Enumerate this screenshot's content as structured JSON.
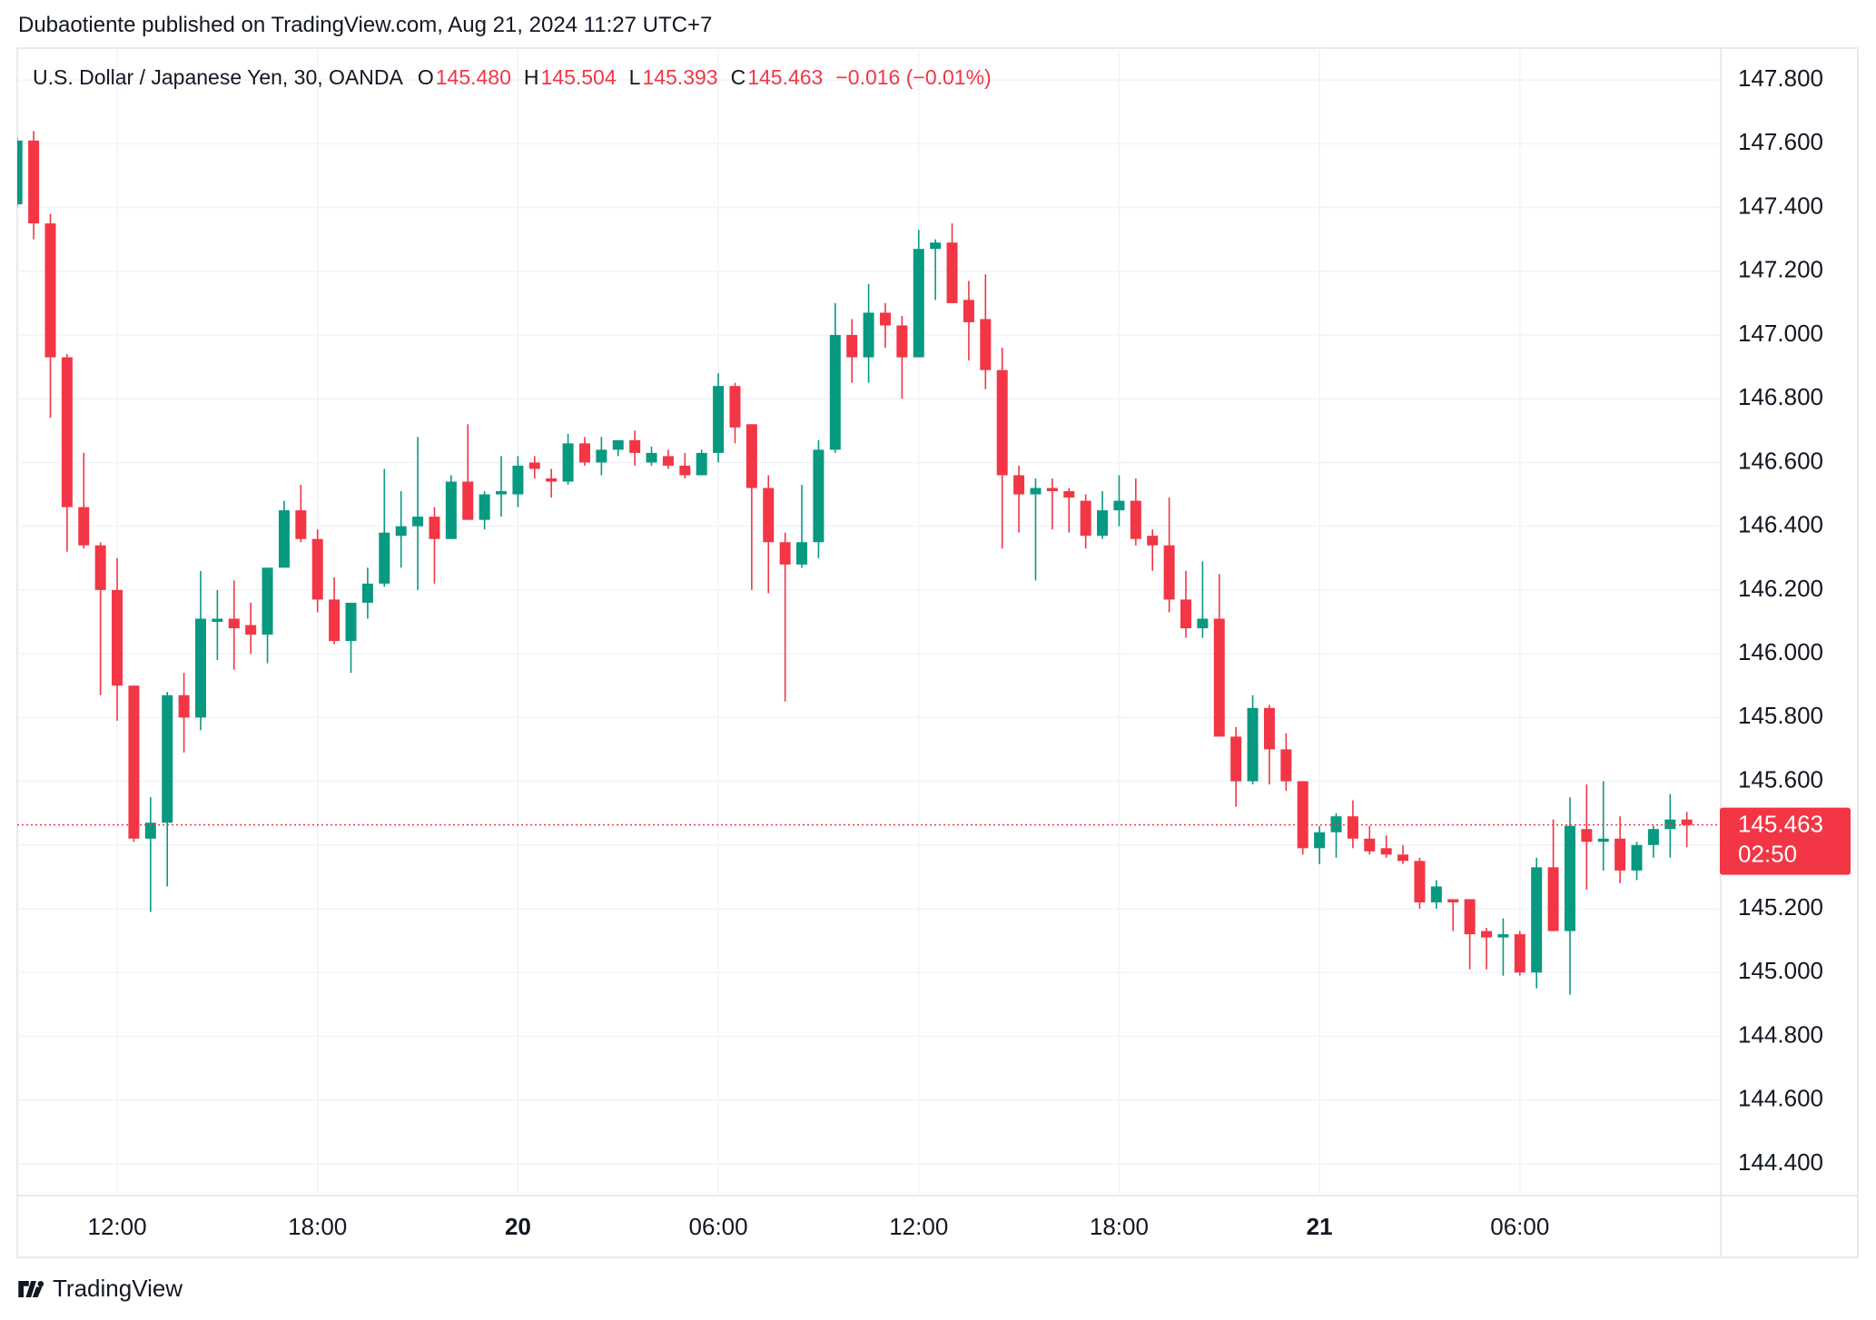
{
  "published": "Dubaotiente published on TradingView.com, Aug 21, 2024 11:27 UTC+7",
  "footer": "TradingView",
  "chart_data": {
    "type": "candlestick",
    "legend": {
      "symbol": "U.S. Dollar / Japanese Yen, 30, OANDA",
      "ohlc": [
        {
          "key": "O",
          "value": "145.480"
        },
        {
          "key": "H",
          "value": "145.504"
        },
        {
          "key": "L",
          "value": "145.393"
        },
        {
          "key": "C",
          "value": "145.463"
        }
      ],
      "change": "−0.016 (−0.01%)"
    },
    "up_color": "#089981",
    "down_color": "#f23645",
    "categories": [
      null,
      null,
      null,
      null,
      null,
      null,
      "12:00",
      null,
      null,
      null,
      null,
      null,
      null,
      null,
      null,
      null,
      null,
      null,
      "18:00",
      null,
      null,
      null,
      null,
      null,
      null,
      null,
      null,
      null,
      null,
      null,
      "20",
      null,
      null,
      null,
      null,
      null,
      null,
      null,
      null,
      null,
      null,
      null,
      "06:00",
      null,
      null,
      null,
      null,
      null,
      null,
      null,
      null,
      null,
      null,
      null,
      "12:00",
      null,
      null,
      null,
      null,
      null,
      null,
      null,
      null,
      null,
      null,
      null,
      "18:00",
      null,
      null,
      null,
      null,
      null,
      null,
      null,
      null,
      null,
      null,
      null,
      "21",
      null,
      null,
      null,
      null,
      null,
      null,
      null,
      null,
      null,
      null,
      null,
      "06:00",
      null,
      null,
      null,
      null,
      null,
      null,
      null,
      null,
      null,
      null
    ],
    "series": [
      {
        "name": "Open",
        "values": [
          147.41,
          147.61,
          147.35,
          146.93,
          146.46,
          146.34,
          146.2,
          145.9,
          145.42,
          145.47,
          145.87,
          145.8,
          146.1,
          146.11,
          146.09,
          146.06,
          146.27,
          146.45,
          146.36,
          146.17,
          146.04,
          146.16,
          146.22,
          146.37,
          146.4,
          146.43,
          146.36,
          146.54,
          146.42,
          146.5,
          146.5,
          146.6,
          146.55,
          146.54,
          146.66,
          146.6,
          146.64,
          146.67,
          146.6,
          146.62,
          146.59,
          146.56,
          146.63,
          146.84,
          146.72,
          146.52,
          146.35,
          146.28,
          146.35,
          146.64,
          147.0,
          146.93,
          147.07,
          147.03,
          146.93,
          147.27,
          147.29,
          147.11,
          147.05,
          146.89,
          146.56,
          146.5,
          146.52,
          146.51,
          146.48,
          146.37,
          146.45,
          146.48,
          146.37,
          146.34,
          146.17,
          146.08,
          146.11,
          145.74,
          145.6,
          145.83,
          145.7,
          145.6,
          145.39,
          145.44,
          145.49,
          145.42,
          145.39,
          145.37,
          145.35,
          145.22,
          145.23,
          145.23,
          145.13,
          145.11,
          145.12,
          145.0,
          145.33,
          145.13,
          145.45,
          145.41,
          145.42,
          145.32,
          145.4,
          145.45,
          145.48
        ]
      },
      {
        "name": "High",
        "values": [
          147.62,
          147.64,
          147.38,
          146.94,
          146.63,
          146.35,
          146.3,
          145.9,
          145.55,
          145.88,
          145.94,
          146.26,
          146.2,
          146.23,
          146.16,
          146.27,
          146.48,
          146.53,
          146.39,
          146.24,
          146.16,
          146.27,
          146.58,
          146.51,
          146.68,
          146.46,
          146.56,
          146.72,
          146.51,
          146.62,
          146.62,
          146.62,
          146.58,
          146.69,
          146.68,
          146.68,
          146.67,
          146.7,
          146.65,
          146.64,
          146.63,
          146.64,
          146.88,
          146.85,
          146.72,
          146.56,
          146.38,
          146.53,
          146.67,
          147.1,
          147.05,
          147.16,
          147.1,
          147.06,
          147.33,
          147.3,
          147.35,
          147.17,
          147.19,
          146.96,
          146.59,
          146.55,
          146.55,
          146.52,
          146.5,
          146.51,
          146.56,
          146.55,
          146.39,
          146.49,
          146.26,
          146.29,
          146.25,
          145.77,
          145.87,
          145.84,
          145.75,
          145.6,
          145.46,
          145.5,
          145.54,
          145.46,
          145.43,
          145.4,
          145.36,
          145.29,
          145.23,
          145.23,
          145.14,
          145.17,
          145.13,
          145.36,
          145.48,
          145.55,
          145.59,
          145.6,
          145.49,
          145.41,
          145.46,
          145.56,
          145.504
        ]
      },
      {
        "name": "Low",
        "values": [
          147.4,
          147.3,
          146.74,
          146.32,
          146.33,
          145.87,
          145.79,
          145.41,
          145.19,
          145.27,
          145.69,
          145.76,
          145.98,
          145.95,
          146.0,
          145.97,
          146.27,
          146.35,
          146.13,
          146.03,
          145.94,
          146.11,
          146.21,
          146.27,
          146.2,
          146.22,
          146.36,
          146.42,
          146.39,
          146.43,
          146.46,
          146.55,
          146.49,
          146.53,
          146.59,
          146.56,
          146.62,
          146.59,
          146.59,
          146.58,
          146.55,
          146.56,
          146.6,
          146.66,
          146.2,
          146.19,
          145.85,
          146.27,
          146.3,
          146.63,
          146.85,
          146.85,
          146.96,
          146.8,
          146.93,
          147.11,
          147.1,
          146.92,
          146.83,
          146.33,
          146.38,
          146.23,
          146.39,
          146.38,
          146.33,
          146.36,
          146.4,
          146.34,
          146.26,
          146.13,
          146.05,
          146.05,
          145.74,
          145.52,
          145.59,
          145.59,
          145.57,
          145.37,
          145.34,
          145.36,
          145.39,
          145.37,
          145.36,
          145.34,
          145.2,
          145.2,
          145.13,
          145.01,
          145.01,
          144.99,
          144.99,
          144.95,
          145.13,
          144.93,
          145.26,
          145.32,
          145.28,
          145.29,
          145.36,
          145.36,
          145.393
        ]
      },
      {
        "name": "Close",
        "values": [
          147.61,
          147.35,
          146.93,
          146.46,
          146.34,
          146.2,
          145.9,
          145.42,
          145.47,
          145.87,
          145.8,
          146.11,
          146.11,
          146.08,
          146.06,
          146.27,
          146.45,
          146.36,
          146.17,
          146.04,
          146.16,
          146.22,
          146.38,
          146.4,
          146.43,
          146.36,
          146.54,
          146.42,
          146.5,
          146.51,
          146.59,
          146.58,
          146.54,
          146.66,
          146.6,
          146.64,
          146.67,
          146.63,
          146.63,
          146.59,
          146.56,
          146.63,
          146.84,
          146.71,
          146.52,
          146.35,
          146.28,
          146.35,
          146.64,
          147.0,
          146.93,
          147.07,
          147.03,
          146.93,
          147.27,
          147.29,
          147.1,
          147.04,
          146.89,
          146.56,
          146.5,
          146.52,
          146.51,
          146.49,
          146.37,
          146.45,
          146.48,
          146.36,
          146.34,
          146.17,
          146.08,
          146.11,
          145.74,
          145.6,
          145.83,
          145.7,
          145.6,
          145.39,
          145.44,
          145.49,
          145.42,
          145.38,
          145.37,
          145.35,
          145.22,
          145.27,
          145.22,
          145.12,
          145.11,
          145.12,
          145.0,
          145.33,
          145.13,
          145.46,
          145.41,
          145.42,
          145.32,
          145.4,
          145.45,
          145.48,
          145.463
        ]
      }
    ],
    "ylim": [
      144.3,
      147.9
    ],
    "yticks": [
      {
        "value": 144.4,
        "label": "144.400"
      },
      {
        "value": 144.6,
        "label": "144.600"
      },
      {
        "value": 144.8,
        "label": "144.800"
      },
      {
        "value": 145.0,
        "label": "145.000"
      },
      {
        "value": 145.2,
        "label": "145.200"
      },
      {
        "value": 145.4,
        "label": "145.400"
      },
      {
        "value": 145.6,
        "label": "145.600"
      },
      {
        "value": 145.8,
        "label": "145.800"
      },
      {
        "value": 146.0,
        "label": "146.000"
      },
      {
        "value": 146.2,
        "label": "146.200"
      },
      {
        "value": 146.4,
        "label": "146.400"
      },
      {
        "value": 146.6,
        "label": "146.600"
      },
      {
        "value": 146.8,
        "label": "146.800"
      },
      {
        "value": 147.0,
        "label": "147.000"
      },
      {
        "value": 147.2,
        "label": "147.200"
      },
      {
        "value": 147.4,
        "label": "147.400"
      },
      {
        "value": 147.6,
        "label": "147.600"
      },
      {
        "value": 147.8,
        "label": "147.800"
      }
    ],
    "grid": true,
    "last_price": {
      "value": 145.463,
      "label": "145.463"
    },
    "countdown": "02:50"
  }
}
